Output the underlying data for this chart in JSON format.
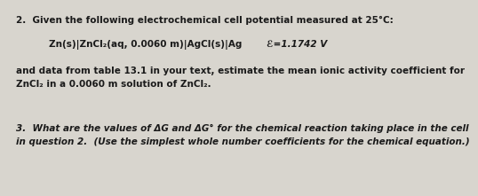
{
  "background_color": "#d8d5ce",
  "line1": "2.  Given the following electrochemical cell potential measured at 25°C:",
  "line2_left": "Zn(s)|ZnCl₂(aq, 0.0060 m)|AgCl(s)|Ag",
  "line2_right": "ℰ=1.1742 V",
  "line3": "and data from table 13.1 in your text, estimate the mean ionic activity coefficient for",
  "line4": "ZnCl₂ in a 0.0060 m solution of ZnCl₂.",
  "line5": "3.  What are the values of ΔG and ΔG° for the chemical reaction taking place in the cell",
  "line6": "in question 2.  (Use the simplest whole number coefficients for the chemical equation.)",
  "font_size_main": 7.5,
  "font_size_cell": 7.5,
  "text_color": "#1a1a1a"
}
